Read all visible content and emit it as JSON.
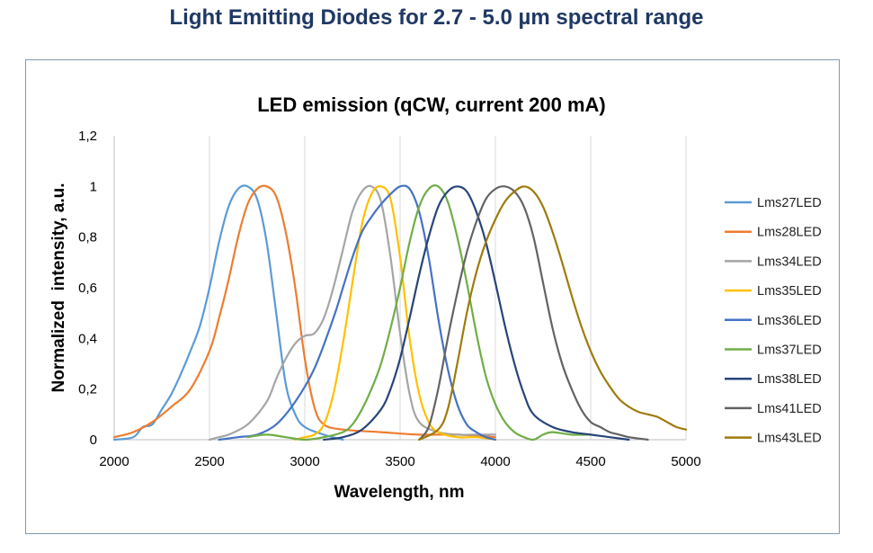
{
  "page": {
    "title": "Light Emitting Diodes for 2.7 - 5.0 µm spectral range"
  },
  "chart_data": {
    "type": "line",
    "title": "LED emission (qCW, current 200 mA)",
    "xlabel": "Wavelength, nm",
    "ylabel": "Normalized  intensity, a.u.",
    "xlim": [
      2000,
      5000
    ],
    "ylim": [
      0,
      1.2
    ],
    "xticks": [
      2000,
      2500,
      3000,
      3500,
      4000,
      4500,
      5000
    ],
    "xtick_labels": [
      "2000",
      "2500",
      "3000",
      "3500",
      "4000",
      "4500",
      "5000"
    ],
    "yticks": [
      0,
      0.2,
      0.4,
      0.6,
      0.8,
      1.0,
      1.2
    ],
    "ytick_labels": [
      "0",
      "0,2",
      "0,4",
      "0,6",
      "0,8",
      "1",
      "1,2"
    ],
    "grid": "vertical",
    "legend_position": "right",
    "series": [
      {
        "name": "Lms27LED",
        "color": "#5b9bd5",
        "x": [
          2000,
          2100,
          2150,
          2200,
          2250,
          2300,
          2350,
          2400,
          2450,
          2500,
          2550,
          2600,
          2650,
          2700,
          2750,
          2800,
          2850,
          2900,
          2950,
          3000,
          3100,
          3200
        ],
        "y": [
          0,
          0.01,
          0.05,
          0.06,
          0.12,
          0.18,
          0.26,
          0.35,
          0.45,
          0.6,
          0.78,
          0.92,
          0.99,
          1.0,
          0.95,
          0.78,
          0.5,
          0.22,
          0.1,
          0.05,
          0.02,
          0
        ]
      },
      {
        "name": "Lms28LED",
        "color": "#ed7d31",
        "x": [
          2000,
          2100,
          2200,
          2300,
          2400,
          2500,
          2550,
          2600,
          2650,
          2700,
          2750,
          2800,
          2850,
          2900,
          2950,
          3000,
          3050,
          3100,
          3200,
          3400,
          3600,
          3800,
          4000
        ],
        "y": [
          0.01,
          0.03,
          0.07,
          0.13,
          0.2,
          0.35,
          0.48,
          0.63,
          0.8,
          0.93,
          0.99,
          1.0,
          0.96,
          0.82,
          0.6,
          0.32,
          0.13,
          0.06,
          0.04,
          0.03,
          0.02,
          0.02,
          0.01
        ]
      },
      {
        "name": "Lms34LED",
        "color": "#a5a5a5",
        "x": [
          2500,
          2550,
          2600,
          2700,
          2800,
          2850,
          2900,
          2950,
          3000,
          3050,
          3100,
          3150,
          3200,
          3250,
          3300,
          3350,
          3400,
          3450,
          3500,
          3550,
          3600,
          3700,
          3800,
          3900,
          4000
        ],
        "y": [
          0,
          0.01,
          0.02,
          0.06,
          0.15,
          0.24,
          0.32,
          0.38,
          0.41,
          0.42,
          0.48,
          0.6,
          0.75,
          0.9,
          0.98,
          1.0,
          0.94,
          0.72,
          0.42,
          0.18,
          0.07,
          0.03,
          0.02,
          0.02,
          0.02
        ]
      },
      {
        "name": "Lms35LED",
        "color": "#ffc000",
        "x": [
          2950,
          3000,
          3050,
          3100,
          3150,
          3200,
          3250,
          3300,
          3350,
          3400,
          3450,
          3500,
          3550,
          3600,
          3650,
          3700,
          3800,
          3900,
          4000
        ],
        "y": [
          0,
          0.01,
          0.02,
          0.06,
          0.18,
          0.38,
          0.62,
          0.85,
          0.97,
          1.0,
          0.95,
          0.72,
          0.4,
          0.18,
          0.07,
          0.03,
          0.01,
          0.01,
          0
        ],
        "dummy": null
      },
      {
        "name": "Lms36LED",
        "color": "#4472c4",
        "x": [
          2550,
          2650,
          2750,
          2850,
          2950,
          3050,
          3150,
          3200,
          3250,
          3300,
          3350,
          3400,
          3450,
          3500,
          3550,
          3600,
          3650,
          3700,
          3750,
          3800,
          3850,
          3900,
          3950,
          4000
        ],
        "y": [
          0,
          0.01,
          0.02,
          0.06,
          0.15,
          0.28,
          0.48,
          0.6,
          0.72,
          0.82,
          0.88,
          0.93,
          0.97,
          1.0,
          0.99,
          0.9,
          0.72,
          0.48,
          0.28,
          0.14,
          0.06,
          0.03,
          0.01,
          0
        ]
      },
      {
        "name": "Lms37LED",
        "color": "#70ad47",
        "x": [
          2700,
          2800,
          2900,
          3000,
          3100,
          3200,
          3250,
          3300,
          3350,
          3400,
          3450,
          3500,
          3550,
          3600,
          3650,
          3700,
          3750,
          3800,
          3850,
          3900,
          3950,
          4000,
          4050,
          4100,
          4150,
          4200,
          4250,
          4300,
          4400,
          4500
        ],
        "y": [
          0.01,
          0.02,
          0.01,
          0.0,
          0.01,
          0.03,
          0.06,
          0.12,
          0.2,
          0.3,
          0.44,
          0.6,
          0.78,
          0.92,
          0.99,
          1.0,
          0.94,
          0.8,
          0.62,
          0.42,
          0.25,
          0.14,
          0.07,
          0.03,
          0.01,
          0.0,
          0.02,
          0.03,
          0.02,
          0.02
        ]
      },
      {
        "name": "Lms38LED",
        "color": "#264478",
        "x": [
          3100,
          3200,
          3300,
          3400,
          3450,
          3500,
          3550,
          3600,
          3650,
          3700,
          3750,
          3800,
          3850,
          3900,
          3950,
          4000,
          4050,
          4100,
          4150,
          4200,
          4300,
          4400,
          4500,
          4600,
          4700
        ],
        "y": [
          0,
          0.01,
          0.04,
          0.12,
          0.2,
          0.32,
          0.48,
          0.65,
          0.8,
          0.92,
          0.98,
          1.0,
          0.98,
          0.9,
          0.78,
          0.62,
          0.45,
          0.3,
          0.18,
          0.1,
          0.05,
          0.03,
          0.02,
          0.01,
          0
        ]
      },
      {
        "name": "Lms41LED",
        "color": "#636363",
        "x": [
          3600,
          3650,
          3700,
          3750,
          3800,
          3850,
          3900,
          3950,
          4000,
          4050,
          4100,
          4150,
          4200,
          4250,
          4300,
          4350,
          4400,
          4450,
          4500,
          4550,
          4600,
          4650,
          4700,
          4800
        ],
        "y": [
          0,
          0.05,
          0.2,
          0.4,
          0.58,
          0.74,
          0.86,
          0.95,
          0.99,
          1.0,
          0.98,
          0.92,
          0.8,
          0.62,
          0.44,
          0.3,
          0.2,
          0.12,
          0.07,
          0.05,
          0.03,
          0.02,
          0.01,
          0
        ]
      },
      {
        "name": "Lms43LED",
        "color": "#9e7b0b",
        "x": [
          3600,
          3700,
          3750,
          3800,
          3850,
          3900,
          3950,
          4000,
          4050,
          4100,
          4150,
          4200,
          4250,
          4300,
          4350,
          4400,
          4450,
          4500,
          4550,
          4600,
          4650,
          4700,
          4750,
          4800,
          4850,
          4900,
          4950,
          5000
        ],
        "y": [
          0,
          0.04,
          0.12,
          0.3,
          0.5,
          0.66,
          0.78,
          0.87,
          0.94,
          0.98,
          1.0,
          0.98,
          0.92,
          0.82,
          0.7,
          0.57,
          0.45,
          0.35,
          0.27,
          0.21,
          0.16,
          0.13,
          0.11,
          0.1,
          0.09,
          0.07,
          0.05,
          0.04
        ]
      }
    ]
  }
}
